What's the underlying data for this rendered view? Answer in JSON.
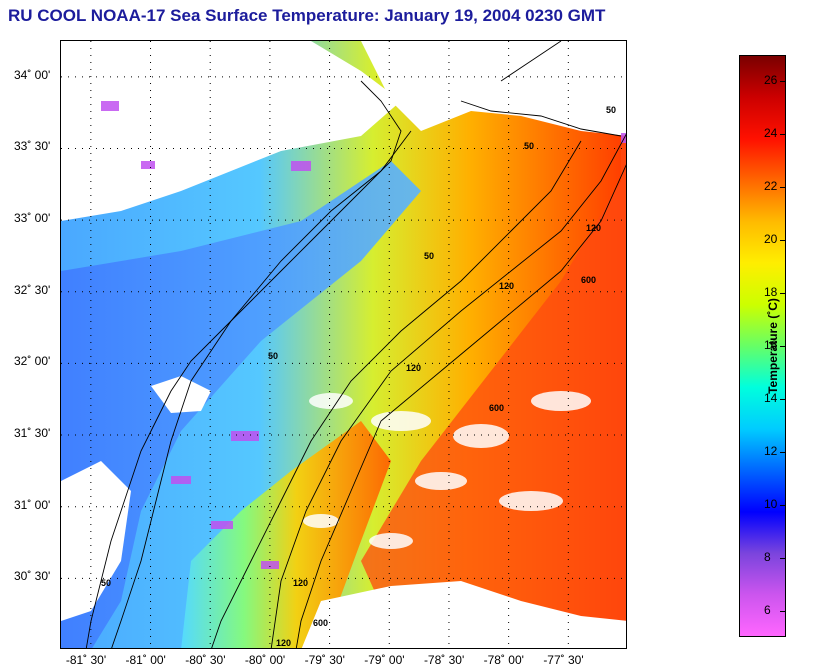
{
  "title": "RU COOL  NOAA-17  Sea Surface Temperature:  January 19, 2004 0230 GMT",
  "map": {
    "lon_range": [
      -81.75,
      -77.0
    ],
    "lat_range": [
      30.0,
      34.25
    ],
    "lat_labels": [
      "34˚ 00'",
      "33˚ 30'",
      "33˚ 00'",
      "32˚ 30'",
      "32˚ 00'",
      "31˚ 30'",
      "31˚ 00'",
      "30˚ 30'"
    ],
    "lon_labels": [
      "-81˚ 30'",
      "-81˚ 00'",
      "-80˚ 30'",
      "-80˚ 00'",
      "-79˚ 30'",
      "-79˚ 00'",
      "-78˚ 30'",
      "-78˚ 00'",
      "-77˚ 30'"
    ],
    "contour_labels": [
      "50",
      "50",
      "50",
      "50",
      "120",
      "120",
      "120",
      "600",
      "600",
      "600",
      "120",
      "120",
      "50"
    ],
    "land_color": "#ffffff",
    "cloud_color": "#ffffff"
  },
  "colorbar": {
    "title": "Temperature (˚C)",
    "min": 5,
    "max": 27,
    "ticks": [
      "26",
      "24",
      "22",
      "20",
      "18",
      "16",
      "14",
      "12",
      "10",
      "8",
      "6"
    ],
    "colors": [
      "#ff66ff",
      "#cc55ee",
      "#7a44dd",
      "#0000ff",
      "#0066ff",
      "#00ccff",
      "#00ffdd",
      "#66ff66",
      "#ccff00",
      "#ffee00",
      "#ffbb00",
      "#ff6600",
      "#ff1100",
      "#cc0000",
      "#7a0000"
    ]
  }
}
